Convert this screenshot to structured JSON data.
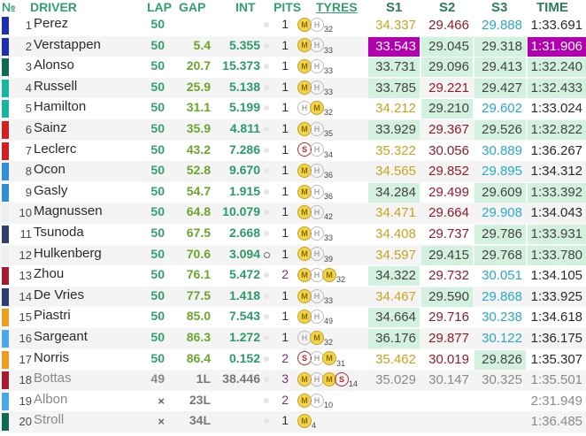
{
  "header": {
    "pos": "№",
    "driver": "DRIVER",
    "lap": "LAP",
    "gap": "GAP",
    "int": "INT",
    "pits": "PITS",
    "tyres": "TYRES",
    "s1": "S1",
    "s2": "S2",
    "s3": "S3",
    "time": "TIME"
  },
  "rows": [
    {
      "pos": "1",
      "driver": "Perez",
      "color": "#1f2eb0",
      "lap": "50",
      "gap": "",
      "int": "",
      "pits": "1",
      "tyres": [
        {
          "c": "M",
          "cur": true
        },
        {
          "c": "H",
          "cur": false
        }
      ],
      "age": "32",
      "s1": "34.337",
      "s2": "29.466",
      "s3": "29.888",
      "time": "1:33.691"
    },
    {
      "pos": "2",
      "driver": "Verstappen",
      "color": "#1f2eb0",
      "lap": "50",
      "gap": "5.4",
      "int": "5.355",
      "pits": "1",
      "tyres": [
        {
          "c": "M",
          "cur": true
        },
        {
          "c": "H",
          "cur": false
        }
      ],
      "age": "33",
      "s1": "33.543",
      "s2": "29.045",
      "s3": "29.318",
      "time": "1:31.906"
    },
    {
      "pos": "3",
      "driver": "Alonso",
      "color": "#116b52",
      "lap": "50",
      "gap": "20.7",
      "int": "15.373",
      "pits": "1",
      "tyres": [
        {
          "c": "M",
          "cur": true
        },
        {
          "c": "H",
          "cur": false
        }
      ],
      "age": "33",
      "s1": "33.731",
      "s2": "29.096",
      "s3": "29.413",
      "time": "1:32.240"
    },
    {
      "pos": "4",
      "driver": "Russell",
      "color": "#1ab5a0",
      "lap": "50",
      "gap": "25.9",
      "int": "5.138",
      "pits": "1",
      "tyres": [
        {
          "c": "M",
          "cur": true
        },
        {
          "c": "H",
          "cur": false
        }
      ],
      "age": "33",
      "s1": "33.785",
      "s2": "29.221",
      "s3": "29.427",
      "time": "1:32.433"
    },
    {
      "pos": "5",
      "driver": "Hamilton",
      "color": "#1ab5a0",
      "lap": "50",
      "gap": "31.1",
      "int": "5.199",
      "pits": "1",
      "tyres": [
        {
          "c": "H",
          "cur": false
        },
        {
          "c": "M",
          "cur": true
        }
      ],
      "age": "32",
      "s1": "34.212",
      "s2": "29.210",
      "s3": "29.602",
      "time": "1:33.024"
    },
    {
      "pos": "6",
      "driver": "Sainz",
      "color": "#d21f1f",
      "lap": "50",
      "gap": "35.9",
      "int": "4.811",
      "pits": "1",
      "tyres": [
        {
          "c": "M",
          "cur": true
        },
        {
          "c": "H",
          "cur": false
        }
      ],
      "age": "35",
      "s1": "33.929",
      "s2": "29.367",
      "s3": "29.526",
      "time": "1:32.822"
    },
    {
      "pos": "7",
      "driver": "Leclerc",
      "color": "#d21f1f",
      "lap": "50",
      "gap": "43.2",
      "int": "7.286",
      "pits": "1",
      "tyres": [
        {
          "c": "S",
          "cur": false
        },
        {
          "c": "H",
          "cur": false
        }
      ],
      "age": "34",
      "s1": "35.322",
      "s2": "30.056",
      "s3": "30.889",
      "time": "1:36.267"
    },
    {
      "pos": "8",
      "driver": "Ocon",
      "color": "#2f8fd6",
      "lap": "50",
      "gap": "52.8",
      "int": "9.670",
      "pits": "1",
      "tyres": [
        {
          "c": "M",
          "cur": true
        },
        {
          "c": "H",
          "cur": false
        }
      ],
      "age": "36",
      "s1": "34.565",
      "s2": "29.852",
      "s3": "29.895",
      "time": "1:34.312"
    },
    {
      "pos": "9",
      "driver": "Gasly",
      "color": "#2f8fd6",
      "lap": "50",
      "gap": "54.7",
      "int": "1.915",
      "pits": "1",
      "tyres": [
        {
          "c": "M",
          "cur": true
        },
        {
          "c": "H",
          "cur": false
        }
      ],
      "age": "36",
      "s1": "34.284",
      "s2": "29.499",
      "s3": "29.609",
      "time": "1:33.392"
    },
    {
      "pos": "10",
      "driver": "Magnussen",
      "color": "#e8e8e8",
      "lap": "50",
      "gap": "64.8",
      "int": "10.079",
      "pits": "1",
      "tyres": [
        {
          "c": "M",
          "cur": true
        },
        {
          "c": "H",
          "cur": false
        }
      ],
      "age": "42",
      "s1": "34.471",
      "s2": "29.664",
      "s3": "29.908",
      "time": "1:34.043"
    },
    {
      "pos": "11",
      "driver": "Tsunoda",
      "color": "#2e3f6b",
      "lap": "50",
      "gap": "67.5",
      "int": "2.668",
      "pits": "1",
      "tyres": [
        {
          "c": "M",
          "cur": true
        },
        {
          "c": "H",
          "cur": false
        }
      ],
      "age": "33",
      "s1": "34.408",
      "s2": "29.737",
      "s3": "29.786",
      "time": "1:33.931"
    },
    {
      "pos": "12",
      "driver": "Hulkenberg",
      "color": "#e8e8e8",
      "lap": "50",
      "gap": "70.6",
      "int": "3.094",
      "pits": "1",
      "tyres": [
        {
          "c": "M",
          "cur": true
        },
        {
          "c": "H",
          "cur": false
        }
      ],
      "age": "39",
      "s1": "34.597",
      "s2": "29.415",
      "s3": "29.768",
      "time": "1:33.780"
    },
    {
      "pos": "13",
      "driver": "Zhou",
      "color": "#a51c2e",
      "lap": "50",
      "gap": "76.1",
      "int": "5.472",
      "pits": "2",
      "tyres": [
        {
          "c": "M",
          "cur": true
        },
        {
          "c": "H",
          "cur": false
        },
        {
          "c": "M",
          "cur": true
        }
      ],
      "age": "32",
      "s1": "34.322",
      "s2": "29.732",
      "s3": "30.051",
      "time": "1:34.105"
    },
    {
      "pos": "14",
      "driver": "De Vries",
      "color": "#2e3f6b",
      "lap": "50",
      "gap": "77.5",
      "int": "1.418",
      "pits": "1",
      "tyres": [
        {
          "c": "M",
          "cur": true
        },
        {
          "c": "H",
          "cur": false
        }
      ],
      "age": "33",
      "s1": "34.467",
      "s2": "29.590",
      "s3": "29.868",
      "time": "1:33.925"
    },
    {
      "pos": "15",
      "driver": "Piastri",
      "color": "#f29a1c",
      "lap": "50",
      "gap": "85.0",
      "int": "7.543",
      "pits": "1",
      "tyres": [
        {
          "c": "M",
          "cur": true
        },
        {
          "c": "H",
          "cur": false
        }
      ],
      "age": "49",
      "s1": "34.664",
      "s2": "29.716",
      "s3": "30.238",
      "time": "1:34.618"
    },
    {
      "pos": "16",
      "driver": "Sargeant",
      "color": "#4aa8e8",
      "lap": "50",
      "gap": "86.3",
      "int": "1.272",
      "pits": "1",
      "tyres": [
        {
          "c": "H",
          "cur": false
        },
        {
          "c": "M",
          "cur": true
        }
      ],
      "age": "32",
      "s1": "36.176",
      "s2": "29.877",
      "s3": "30.122",
      "time": "1:36.175"
    },
    {
      "pos": "17",
      "driver": "Norris",
      "color": "#f29a1c",
      "lap": "50",
      "gap": "86.4",
      "int": "0.152",
      "pits": "2",
      "tyres": [
        {
          "c": "S",
          "cur": false
        },
        {
          "c": "H",
          "cur": false
        },
        {
          "c": "M",
          "cur": true
        }
      ],
      "age": "31",
      "s1": "35.462",
      "s2": "30.019",
      "s3": "29.826",
      "time": "1:35.307"
    },
    {
      "pos": "18",
      "driver": "Bottas",
      "color": "#a51c2e",
      "lap": "49",
      "gap": "1L",
      "int": "38.446",
      "pits": "3",
      "tyres": [
        {
          "c": "M",
          "cur": true
        },
        {
          "c": "H",
          "cur": false
        },
        {
          "c": "M",
          "cur": true
        },
        {
          "c": "S",
          "cur": false
        }
      ],
      "age": "14",
      "s1": "35.029",
      "s2": "30.147",
      "s3": "30.325",
      "time": "1:35.501"
    },
    {
      "pos": "19",
      "driver": "Albon",
      "color": "#4aa8e8",
      "lap": "×",
      "gap": "23L",
      "int": "",
      "pits": "2",
      "tyres": [
        {
          "c": "M",
          "cur": true
        },
        {
          "c": "H",
          "cur": false
        }
      ],
      "age": "10",
      "s1": "",
      "s2": "",
      "s3": "",
      "time": "2:31.949"
    },
    {
      "pos": "20",
      "driver": "Stroll",
      "color": "#116b52",
      "lap": "×",
      "gap": "34L",
      "int": "",
      "pits": "1",
      "tyres": [
        {
          "c": "M",
          "cur": true
        }
      ],
      "age": "4",
      "s1": "",
      "s2": "",
      "s3": "",
      "time": "1:36.485"
    }
  ],
  "highlights": {
    "best_overall": "#b000b0",
    "personal_best": "#d2f2df",
    "s1": "#c7a41e",
    "s2": "#8f1d2a",
    "s3": "#2aa8c8",
    "lap": "#33a06a"
  }
}
